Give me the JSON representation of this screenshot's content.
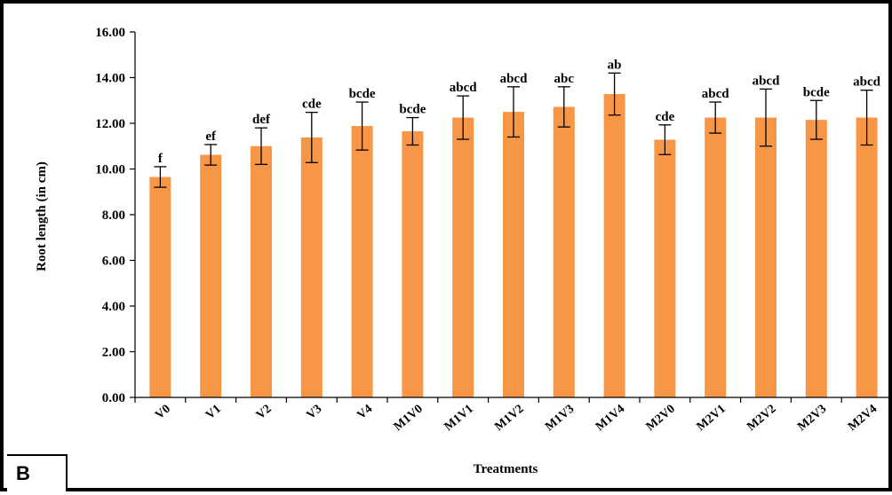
{
  "panel_label": "B",
  "chart_data": {
    "type": "bar",
    "title": "",
    "xlabel": "Treatments",
    "ylabel": "Root length (in cm)",
    "ylim": [
      0,
      16
    ],
    "yticks": [
      "0.00",
      "2.00",
      "4.00",
      "6.00",
      "8.00",
      "10.00",
      "12.00",
      "14.00",
      "16.00"
    ],
    "grid": false,
    "bar_color": "#f79646",
    "categories": [
      "V0",
      "V1",
      "V2",
      "V3",
      "V4",
      "M1V0",
      "M1V1",
      "M1V2",
      "M1V3",
      "M1V4",
      "M2V0",
      "M2V1",
      "M2V2",
      "M2V3",
      "M2V4"
    ],
    "values": [
      9.65,
      10.62,
      11.0,
      11.38,
      11.88,
      11.65,
      12.25,
      12.5,
      12.72,
      13.28,
      11.28,
      12.25,
      12.25,
      12.15,
      12.25
    ],
    "errors": [
      0.45,
      0.45,
      0.8,
      1.1,
      1.05,
      0.6,
      0.95,
      1.1,
      0.88,
      0.92,
      0.65,
      0.68,
      1.25,
      0.85,
      1.2
    ],
    "significance_letters": [
      "f",
      "ef",
      "def",
      "cde",
      "bcde",
      "bcde",
      "abcd",
      "abcd",
      "abc",
      "ab",
      "cde",
      "abcd",
      "abcd",
      "bcde",
      "abcd"
    ]
  }
}
